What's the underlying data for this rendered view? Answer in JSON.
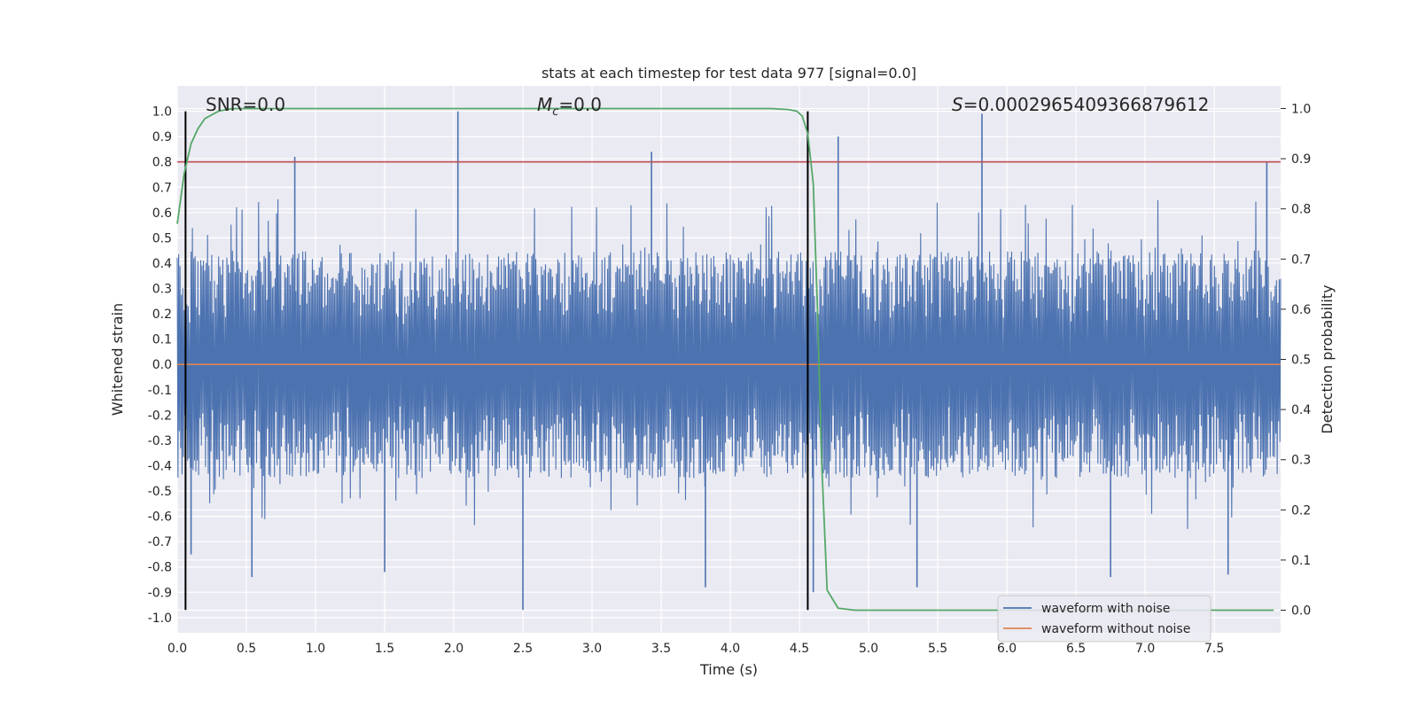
{
  "chart_data": {
    "type": "line",
    "title": "stats at each timestep for test data 977 [signal=0.0]",
    "xlabel": "Time (s)",
    "ylabel": "Whitened strain",
    "ylabel_right": "Detection probability",
    "xlim": [
      0.0,
      7.98
    ],
    "ylim": [
      -1.06,
      1.1
    ],
    "ylim_right": [
      -0.045,
      1.045
    ],
    "x_ticks": [
      "0.0",
      "0.5",
      "1.0",
      "1.5",
      "2.0",
      "2.5",
      "3.0",
      "3.5",
      "4.0",
      "4.5",
      "5.0",
      "5.5",
      "6.0",
      "6.5",
      "7.0",
      "7.5"
    ],
    "x_tick_values": [
      0.0,
      0.5,
      1.0,
      1.5,
      2.0,
      2.5,
      3.0,
      3.5,
      4.0,
      4.5,
      5.0,
      5.5,
      6.0,
      6.5,
      7.0,
      7.5
    ],
    "y_ticks": [
      "1.0",
      "0.9",
      "0.8",
      "0.7",
      "0.6",
      "0.5",
      "0.4",
      "0.3",
      "0.2",
      "0.1",
      "0.0",
      "-0.1",
      "-0.2",
      "-0.3",
      "-0.4",
      "-0.5",
      "-0.6",
      "-0.7",
      "-0.8",
      "-0.9",
      "-1.0"
    ],
    "y_tick_values": [
      1.0,
      0.9,
      0.8,
      0.7,
      0.6,
      0.5,
      0.4,
      0.3,
      0.2,
      0.1,
      0.0,
      -0.1,
      -0.2,
      -0.3,
      -0.4,
      -0.5,
      -0.6,
      -0.7,
      -0.8,
      -0.9,
      -1.0
    ],
    "y_right_ticks": [
      "1.0",
      "0.9",
      "0.8",
      "0.7",
      "0.6",
      "0.5",
      "0.4",
      "0.3",
      "0.2",
      "0.1",
      "0.0"
    ],
    "y_right_tick_values": [
      1.0,
      0.9,
      0.8,
      0.7,
      0.6,
      0.5,
      0.4,
      0.3,
      0.2,
      0.1,
      0.0
    ],
    "grid": true,
    "legend_position": "bottom-right",
    "series": [
      {
        "name": "waveform with noise",
        "axis": "left",
        "color": "#4c72b0",
        "envelope_typical": 0.45,
        "spikes": [
          {
            "x": 2.03,
            "y": 1.0
          },
          {
            "x": 5.82,
            "y": 0.99
          },
          {
            "x": 4.78,
            "y": 0.9
          },
          {
            "x": 0.85,
            "y": 0.82
          },
          {
            "x": 7.88,
            "y": 0.8
          },
          {
            "x": 3.43,
            "y": 0.84
          },
          {
            "x": 2.5,
            "y": -0.97
          },
          {
            "x": 3.82,
            "y": -0.88
          },
          {
            "x": 5.35,
            "y": -0.88
          },
          {
            "x": 6.75,
            "y": -0.84
          },
          {
            "x": 0.54,
            "y": -0.84
          },
          {
            "x": 7.6,
            "y": -0.83
          },
          {
            "x": 1.5,
            "y": -0.82
          },
          {
            "x": 0.1,
            "y": -0.75
          },
          {
            "x": 4.6,
            "y": -0.9
          }
        ]
      },
      {
        "name": "waveform without noise",
        "axis": "left",
        "color": "#dd8452",
        "points": [
          [
            0.0,
            0.0
          ],
          [
            7.98,
            0.0
          ]
        ]
      },
      {
        "name": "",
        "axis": "right",
        "color": "#55a868",
        "points": [
          [
            0.0,
            0.77
          ],
          [
            0.05,
            0.87
          ],
          [
            0.1,
            0.93
          ],
          [
            0.15,
            0.96
          ],
          [
            0.2,
            0.98
          ],
          [
            0.3,
            0.995
          ],
          [
            0.4,
            1.0
          ],
          [
            4.3,
            1.0
          ],
          [
            4.42,
            0.998
          ],
          [
            4.48,
            0.995
          ],
          [
            4.52,
            0.985
          ],
          [
            4.56,
            0.95
          ],
          [
            4.6,
            0.85
          ],
          [
            4.63,
            0.6
          ],
          [
            4.66,
            0.3
          ],
          [
            4.7,
            0.04
          ],
          [
            4.78,
            0.004
          ],
          [
            4.9,
            0.0
          ],
          [
            7.93,
            0.0
          ]
        ]
      }
    ],
    "threshold": {
      "axis": "left",
      "y": 0.8,
      "color": "#c44e52"
    },
    "vlines": [
      {
        "x": 0.06,
        "ymin": -0.97,
        "ymax": 1.0,
        "color": "#000000"
      },
      {
        "x": 4.56,
        "ymin": -0.97,
        "ymax": 1.0,
        "color": "#000000"
      }
    ],
    "annotations": {
      "snr": "SNR=0.0",
      "mc": "=0.0",
      "mc_symbol": "M",
      "mc_sub": "c",
      "s": "=0.00029654093668796​12",
      "s_symbol": "S"
    },
    "legend": [
      {
        "label": "waveform with noise",
        "color": "#4c72b0"
      },
      {
        "label": "waveform without noise",
        "color": "#dd8452"
      }
    ],
    "colors": {
      "background": "#eaeaf2",
      "grid": "#ffffff"
    }
  }
}
